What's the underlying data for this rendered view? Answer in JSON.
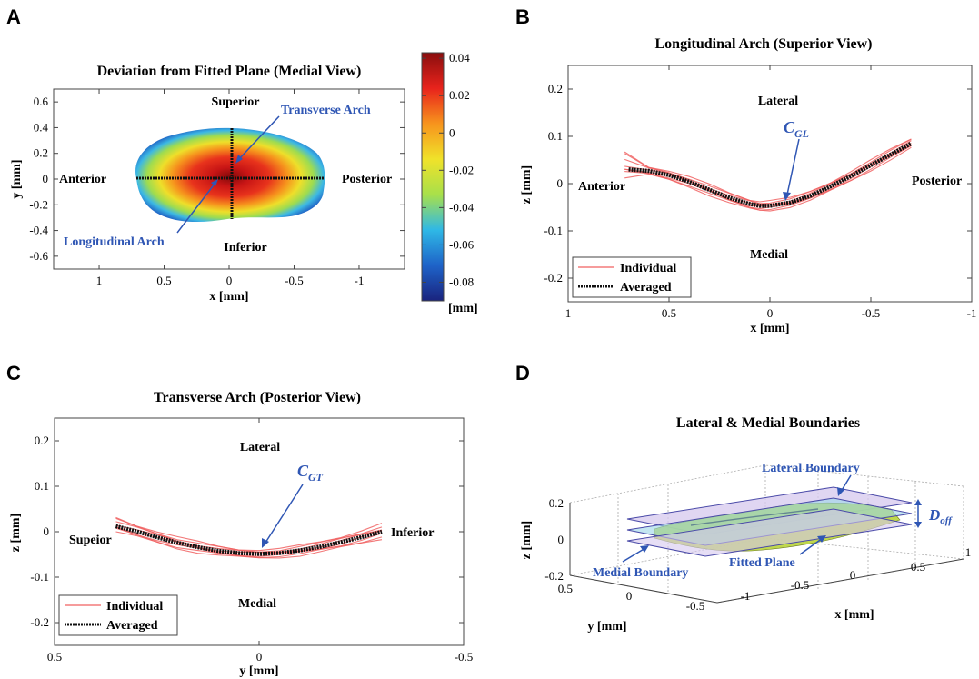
{
  "panels": {
    "A": {
      "label": "A",
      "title": "Deviation from Fitted Plane (Medial View)",
      "xlabel": "x [mm]",
      "ylabel": "y [mm]",
      "xlim": [
        1.35,
        -1.35
      ],
      "ylim": [
        -0.7,
        0.7
      ],
      "xticks": [
        1,
        0.5,
        0,
        -0.5,
        -1
      ],
      "xtick_labels": [
        "1",
        "0.5",
        "0",
        "-0.5",
        "-1"
      ],
      "yticks": [
        0.6,
        0.4,
        0.2,
        0,
        -0.2,
        -0.4,
        -0.6
      ],
      "ytick_labels": [
        "0.6",
        "0.4",
        "0.2",
        "0",
        "-0.2",
        "-0.4",
        "-0.6"
      ],
      "notes": {
        "superior": "Superior",
        "inferior": "Inferior",
        "anterior": "Anterior",
        "posterior": "Posterior"
      },
      "transverse_label": "Transverse Arch",
      "longitudinal_label": "Longitudinal Arch",
      "colorbar": {
        "range": [
          -0.09,
          0.043
        ],
        "ticks": [
          0.04,
          0.02,
          0,
          -0.02,
          -0.04,
          -0.06,
          -0.08
        ],
        "tick_labels": [
          "0.04",
          "0.02",
          "0",
          "-0.02",
          "-0.04",
          "-0.06",
          "-0.08"
        ],
        "unit": "[mm]",
        "colors": [
          "#1a237e",
          "#1e63c8",
          "#2fb8e6",
          "#a8e04a",
          "#f0e22a",
          "#f7941d",
          "#e8231c",
          "#8a0e0e"
        ]
      }
    },
    "B": {
      "label": "B",
      "title": "Longitudinal Arch (Superior View)",
      "xlabel": "x [mm]",
      "ylabel": "z [mm]",
      "xlim": [
        1,
        -1
      ],
      "ylim": [
        -0.25,
        0.25
      ],
      "xticks": [
        1,
        0.5,
        0,
        -0.5,
        -1
      ],
      "xtick_labels": [
        "1",
        "0.5",
        "0",
        "-0.5",
        "-1"
      ],
      "yticks": [
        0.2,
        0.1,
        0,
        -0.1,
        -0.2
      ],
      "ytick_labels": [
        "0.2",
        "0.1",
        "0",
        "-0.1",
        "-0.2"
      ],
      "notes": {
        "lateral": "Lateral",
        "medial": "Medial",
        "anterior": "Anterior",
        "posterior": "Posterior"
      },
      "point_label_main": "C",
      "point_label_sub": "GL",
      "legend": [
        "Individual",
        "Averaged"
      ]
    },
    "C": {
      "label": "C",
      "title": "Transverse Arch (Posterior View)",
      "xlabel": "y [mm]",
      "ylabel": "z [mm]",
      "xlim": [
        0.5,
        -0.5
      ],
      "ylim": [
        -0.25,
        0.25
      ],
      "xticks": [
        0.5,
        0,
        -0.5
      ],
      "xtick_labels": [
        "0.5",
        "0",
        "-0.5"
      ],
      "yticks": [
        0.2,
        0.1,
        0,
        -0.1,
        -0.2
      ],
      "ytick_labels": [
        "0.2",
        "0.1",
        "0",
        "-0.1",
        "-0.2"
      ],
      "notes": {
        "lateral": "Lateral",
        "medial": "Medial",
        "superior": "Supeior",
        "inferior": "Inferior"
      },
      "point_label_main": "C",
      "point_label_sub": "GT",
      "legend": [
        "Individual",
        "Averaged"
      ]
    },
    "D": {
      "label": "D",
      "title": "Lateral & Medial Boundaries",
      "xlabel": "x [mm]",
      "ylabel": "y [mm]",
      "zlabel": "z [mm]",
      "zticks": [
        "0.2",
        "0",
        "-0.2"
      ],
      "yticks": [
        "0.5",
        "0",
        "-0.5"
      ],
      "xticks": [
        "-1",
        "-0.5",
        "0",
        "0.5",
        "1"
      ],
      "lateral_boundary": "Lateral Boundary",
      "medial_boundary": "Medial Boundary",
      "fitted_plane": "Fitted Plane",
      "doff_main": "D",
      "doff_sub": "off"
    }
  },
  "chart_data": [
    {
      "type": "heatmap",
      "title": "Deviation from Fitted Plane (Medial View)",
      "xlabel": "x [mm]",
      "ylabel": "y [mm]",
      "xlim": [
        1.35,
        -1.35
      ],
      "ylim": [
        -0.7,
        0.7
      ],
      "value_range": [
        -0.09,
        0.043
      ],
      "peak": {
        "x": 0.0,
        "y": 0.0,
        "value": 0.04
      },
      "extent": {
        "x": [
          0.72,
          -0.72
        ],
        "y": [
          -0.37,
          0.34
        ]
      }
    },
    {
      "type": "line",
      "title": "Longitudinal Arch (Superior View)",
      "xlabel": "x [mm]",
      "ylabel": "z [mm]",
      "xlim": [
        1,
        -1
      ],
      "ylim": [
        -0.25,
        0.25
      ],
      "series": [
        {
          "name": "Averaged",
          "x": [
            0.7,
            0.6,
            0.5,
            0.4,
            0.3,
            0.2,
            0.1,
            0.05,
            0.0,
            -0.1,
            -0.2,
            -0.3,
            -0.4,
            -0.5,
            -0.6,
            -0.7
          ],
          "y": [
            0.03,
            0.027,
            0.018,
            0.004,
            -0.013,
            -0.03,
            -0.043,
            -0.047,
            -0.047,
            -0.04,
            -0.026,
            -0.006,
            0.016,
            0.039,
            0.062,
            0.085
          ]
        },
        {
          "name": "Individual",
          "x": [
            0.72,
            0.6,
            0.5,
            0.4,
            0.3,
            0.2,
            0.1,
            0.05,
            0.0,
            -0.1,
            -0.2,
            -0.3,
            -0.4,
            -0.5,
            -0.6,
            -0.7
          ],
          "y_low": [
            0.012,
            0.018,
            0.008,
            -0.006,
            -0.024,
            -0.041,
            -0.054,
            -0.057,
            -0.056,
            -0.049,
            -0.036,
            -0.016,
            0.006,
            0.029,
            0.052,
            0.075
          ],
          "y_high": [
            0.065,
            0.036,
            0.028,
            0.014,
            -0.003,
            -0.02,
            -0.033,
            -0.037,
            -0.037,
            -0.031,
            -0.016,
            0.004,
            0.026,
            0.049,
            0.072,
            0.095
          ]
        }
      ],
      "annotations": [
        "Lateral",
        "Medial",
        "Anterior",
        "Posterior",
        "C_GL"
      ]
    },
    {
      "type": "line",
      "title": "Transverse Arch (Posterior View)",
      "xlabel": "y [mm]",
      "ylabel": "z [mm]",
      "xlim": [
        0.5,
        -0.5
      ],
      "ylim": [
        -0.25,
        0.25
      ],
      "series": [
        {
          "name": "Averaged",
          "x": [
            0.35,
            0.3,
            0.25,
            0.2,
            0.15,
            0.1,
            0.05,
            0.0,
            -0.05,
            -0.1,
            -0.15,
            -0.2,
            -0.25,
            -0.3
          ],
          "y": [
            0.012,
            0.001,
            -0.012,
            -0.024,
            -0.034,
            -0.042,
            -0.047,
            -0.049,
            -0.047,
            -0.041,
            -0.033,
            -0.023,
            -0.012,
            0.0
          ]
        },
        {
          "name": "Individual",
          "x": [
            0.35,
            0.3,
            0.25,
            0.2,
            0.15,
            0.1,
            0.05,
            0.0,
            -0.05,
            -0.1,
            -0.15,
            -0.2,
            -0.25,
            -0.3
          ],
          "y_low": [
            0.0,
            -0.012,
            -0.024,
            -0.036,
            -0.045,
            -0.052,
            -0.056,
            -0.058,
            -0.056,
            -0.052,
            -0.045,
            -0.036,
            -0.025,
            -0.014
          ],
          "y_high": [
            0.03,
            0.015,
            0.002,
            -0.012,
            -0.023,
            -0.032,
            -0.038,
            -0.04,
            -0.038,
            -0.031,
            -0.022,
            -0.01,
            0.003,
            0.016
          ]
        }
      ],
      "annotations": [
        "Lateral",
        "Medial",
        "Supeior",
        "Inferior",
        "C_GT"
      ]
    },
    {
      "type": "area",
      "title": "Lateral & Medial Boundaries",
      "xlabel": "x [mm]",
      "ylabel": "y [mm]",
      "zlabel": "z [mm]",
      "surfaces": [
        "Lateral Boundary",
        "Fitted Plane",
        "Medial Boundary"
      ],
      "zlim": [
        -0.2,
        0.2
      ],
      "ylim": [
        0.5,
        -0.5
      ],
      "xlim": [
        -1,
        1
      ]
    }
  ]
}
